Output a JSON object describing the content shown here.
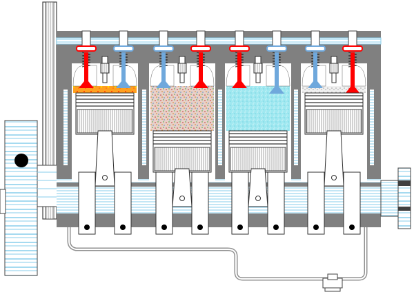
{
  "diagram": {
    "subject": "four-cylinder-engine-cutaway",
    "cylinders": [
      {
        "index": 1,
        "stroke": "power",
        "intake_valve": "closed",
        "exhaust_valve": "closed",
        "charge": "burning"
      },
      {
        "index": 2,
        "stroke": "compression",
        "intake_valve": "closed",
        "exhaust_valve": "closed",
        "charge": "mixture"
      },
      {
        "index": 3,
        "stroke": "intake",
        "intake_valve": "open",
        "exhaust_valve": "closed",
        "charge": "fresh"
      },
      {
        "index": 4,
        "stroke": "exhaust",
        "intake_valve": "closed",
        "exhaust_valve": "open",
        "charge": "exhaust"
      }
    ],
    "colors": {
      "block": "#808080",
      "coolant": "#87ceeb",
      "exhaust_valve": "#ff0000",
      "intake_valve": "#6fa8dc",
      "combustion": "#ff9900",
      "mixture": "#c8a060",
      "fresh_charge": "#9fe8f0",
      "exhaust_gas": "#b0b0b0",
      "oil_line": "#c0c0c0"
    }
  }
}
